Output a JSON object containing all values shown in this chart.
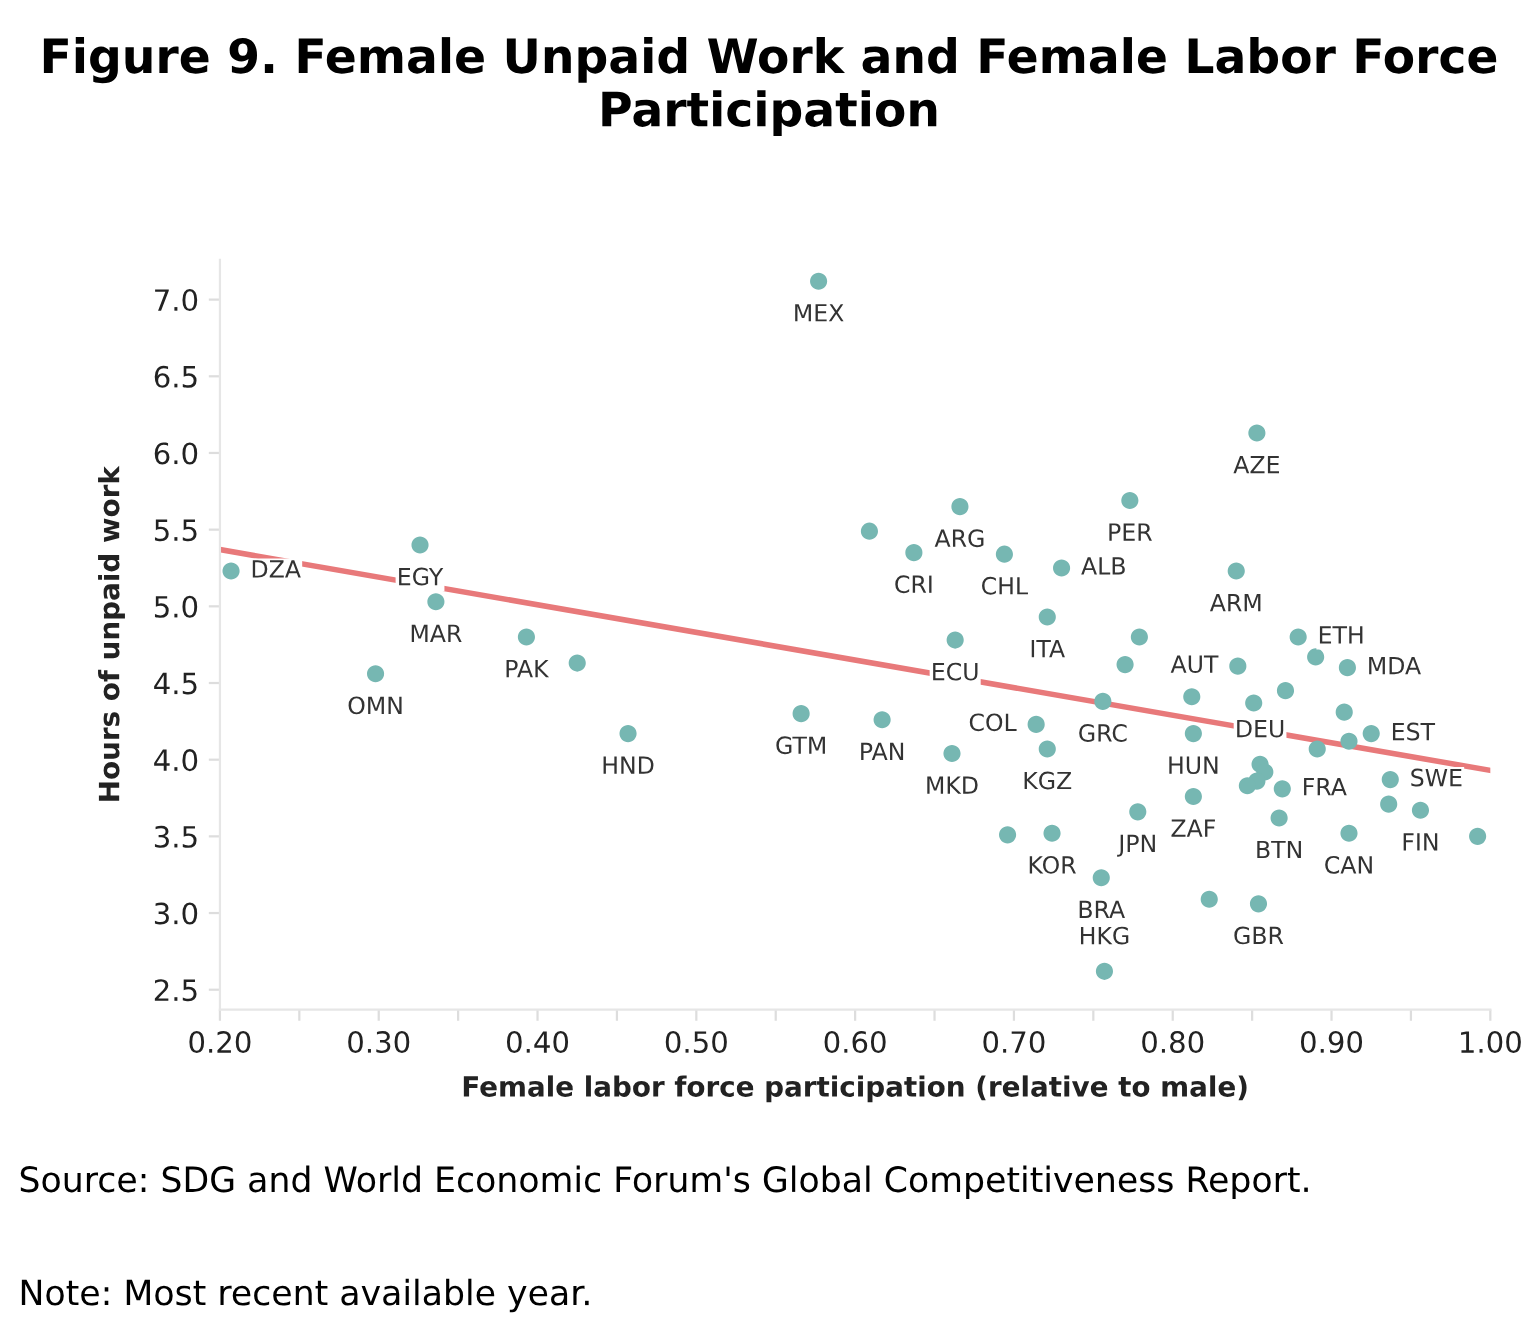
{
  "chart_data": {
    "type": "scatter",
    "title": "Figure 9. Female Unpaid Work and Female Labor Force Participation",
    "xlabel": "Female labor force participation (relative to male)",
    "ylabel": "Hours of unpaid work",
    "xlim": [
      0.2,
      1.0
    ],
    "ylim": [
      2.37,
      7.26
    ],
    "xticks": [
      {
        "value": 0.2,
        "label": "0.20"
      },
      {
        "value": 0.25,
        "label": null
      },
      {
        "value": 0.3,
        "label": "0.30"
      },
      {
        "value": 0.35,
        "label": null
      },
      {
        "value": 0.4,
        "label": "0.40"
      },
      {
        "value": 0.45,
        "label": null
      },
      {
        "value": 0.5,
        "label": "0.50"
      },
      {
        "value": 0.55,
        "label": null
      },
      {
        "value": 0.6,
        "label": "0.60"
      },
      {
        "value": 0.65,
        "label": null
      },
      {
        "value": 0.7,
        "label": "0.70"
      },
      {
        "value": 0.75,
        "label": null
      },
      {
        "value": 0.8,
        "label": "0.80"
      },
      {
        "value": 0.85,
        "label": null
      },
      {
        "value": 0.9,
        "label": "0.90"
      },
      {
        "value": 0.95,
        "label": null
      },
      {
        "value": 1.0,
        "label": "1.00"
      }
    ],
    "yticks": [
      {
        "value": 2.5,
        "label": "2.5"
      },
      {
        "value": 3.0,
        "label": "3.0"
      },
      {
        "value": 3.5,
        "label": "3.5"
      },
      {
        "value": 4.0,
        "label": "4.0"
      },
      {
        "value": 4.5,
        "label": "4.5"
      },
      {
        "value": 5.0,
        "label": "5.0"
      },
      {
        "value": 5.5,
        "label": "5.5"
      },
      {
        "value": 6.0,
        "label": "6.0"
      },
      {
        "value": 6.5,
        "label": "6.5"
      },
      {
        "value": 7.0,
        "label": "7.0"
      }
    ],
    "grid": false,
    "series": [
      {
        "color": "#76b7b2",
        "marker": "circle",
        "x": [
          0.207,
          0.326,
          0.336,
          0.298,
          0.393,
          0.425,
          0.457,
          0.566,
          0.577,
          0.609,
          0.666,
          0.637,
          0.694,
          0.73,
          0.721,
          0.663,
          0.773,
          0.779,
          0.853,
          0.84,
          0.879,
          0.89,
          0.77,
          0.841,
          0.91,
          0.871,
          0.812,
          0.851,
          0.756,
          0.908,
          0.617,
          0.714,
          0.813,
          0.925,
          0.911,
          0.661,
          0.721,
          0.891,
          0.855,
          0.858,
          0.853,
          0.847,
          0.869,
          0.937,
          0.936,
          0.956,
          0.813,
          0.778,
          0.867,
          0.696,
          0.724,
          0.911,
          0.992,
          0.755,
          0.823,
          0.854,
          0.757
        ],
        "values": [
          5.23,
          5.4,
          5.03,
          4.56,
          4.8,
          4.63,
          4.17,
          4.3,
          7.12,
          5.49,
          5.65,
          5.35,
          5.34,
          5.25,
          4.93,
          4.78,
          5.69,
          4.8,
          6.13,
          5.23,
          4.8,
          4.67,
          4.62,
          4.61,
          4.6,
          4.45,
          4.41,
          4.37,
          4.38,
          4.31,
          4.26,
          4.23,
          4.17,
          4.17,
          4.12,
          4.04,
          4.07,
          4.07,
          3.97,
          3.92,
          3.86,
          3.83,
          3.81,
          3.87,
          3.71,
          3.67,
          3.76,
          3.66,
          3.62,
          3.51,
          3.52,
          3.52,
          3.5,
          3.23,
          3.09,
          3.06,
          2.62
        ]
      },
      {
        "type": "line",
        "color": "#e8797a",
        "x": [
          0.2,
          1.0
        ],
        "values": [
          5.37,
          3.93
        ]
      }
    ],
    "annotations": [
      {
        "text": "DZA",
        "x": 0.207,
        "y": 5.23
      },
      {
        "text": "EGY",
        "x": 0.326,
        "y": 5.4
      },
      {
        "text": "MAR",
        "x": 0.336,
        "y": 5.03
      },
      {
        "text": "OMN",
        "x": 0.298,
        "y": 4.56
      },
      {
        "text": "PAK",
        "x": 0.393,
        "y": 4.8
      },
      {
        "text": "HND",
        "x": 0.457,
        "y": 4.17
      },
      {
        "text": "GTM",
        "x": 0.566,
        "y": 4.3
      },
      {
        "text": "MEX",
        "x": 0.577,
        "y": 7.12
      },
      {
        "text": "ARG",
        "x": 0.666,
        "y": 5.65
      },
      {
        "text": "CRI",
        "x": 0.637,
        "y": 5.35
      },
      {
        "text": "CHL",
        "x": 0.694,
        "y": 5.34
      },
      {
        "text": "ALB",
        "x": 0.73,
        "y": 5.25
      },
      {
        "text": "ITA",
        "x": 0.721,
        "y": 4.93
      },
      {
        "text": "ECU",
        "x": 0.663,
        "y": 4.78
      },
      {
        "text": "PER",
        "x": 0.773,
        "y": 5.69
      },
      {
        "text": "AZE",
        "x": 0.853,
        "y": 6.13
      },
      {
        "text": "ARM",
        "x": 0.84,
        "y": 5.23
      },
      {
        "text": "ETH",
        "x": 0.879,
        "y": 4.8
      },
      {
        "text": "AUT",
        "x": 0.841,
        "y": 4.61
      },
      {
        "text": "MDA",
        "x": 0.91,
        "y": 4.6
      },
      {
        "text": "GRC",
        "x": 0.756,
        "y": 4.38
      },
      {
        "text": "PAN",
        "x": 0.617,
        "y": 4.26
      },
      {
        "text": "COL",
        "x": 0.714,
        "y": 4.23
      },
      {
        "text": "HUN",
        "x": 0.813,
        "y": 4.17
      },
      {
        "text": "EST",
        "x": 0.925,
        "y": 4.17
      },
      {
        "text": "MKD",
        "x": 0.661,
        "y": 4.04
      },
      {
        "text": "KGZ",
        "x": 0.721,
        "y": 4.07
      },
      {
        "text": "DEU",
        "x": 0.855,
        "y": 3.97
      },
      {
        "text": "FRA",
        "x": 0.869,
        "y": 3.81
      },
      {
        "text": "SWE",
        "x": 0.937,
        "y": 3.87
      },
      {
        "text": "FIN",
        "x": 0.956,
        "y": 3.67
      },
      {
        "text": "ZAF",
        "x": 0.813,
        "y": 3.76
      },
      {
        "text": "JPN",
        "x": 0.778,
        "y": 3.66
      },
      {
        "text": "BTN",
        "x": 0.867,
        "y": 3.62
      },
      {
        "text": "KOR",
        "x": 0.724,
        "y": 3.52
      },
      {
        "text": "CAN",
        "x": 0.911,
        "y": 3.52
      },
      {
        "text": "BRA",
        "x": 0.755,
        "y": 3.23
      },
      {
        "text": "GBR",
        "x": 0.854,
        "y": 3.06
      },
      {
        "text": "HKG",
        "x": 0.757,
        "y": 2.62
      },
      "Source: SDG and World Economic Forum's Global Competitiveness Report.",
      "Note: Most recent available year."
    ]
  }
}
